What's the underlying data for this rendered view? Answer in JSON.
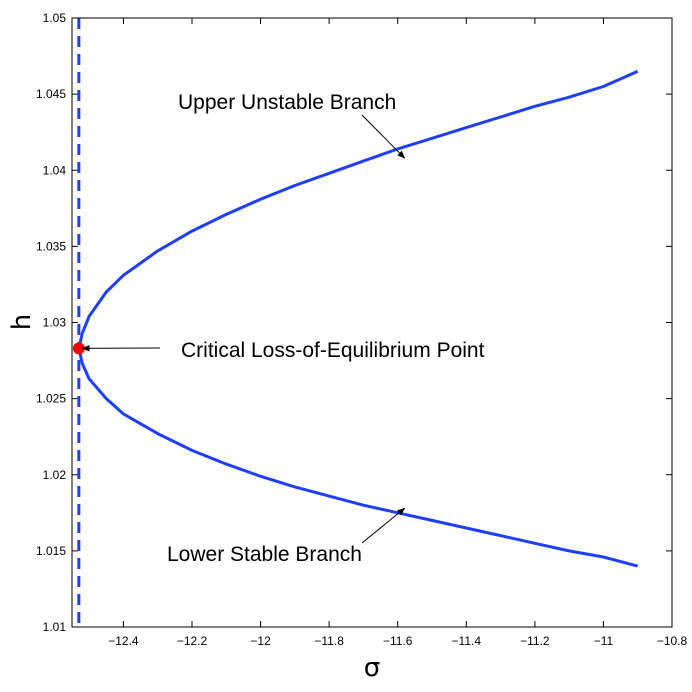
{
  "chart_data": {
    "type": "line",
    "title": "",
    "xlabel": "σ",
    "ylabel": "h",
    "xlim": [
      -12.55,
      -10.8
    ],
    "ylim": [
      1.01,
      1.05
    ],
    "xticks": [
      -12.4,
      -12.2,
      -12,
      -11.8,
      -11.6,
      -11.4,
      -11.2,
      -11,
      -10.8
    ],
    "xtick_labels": [
      "−12.4",
      "−12.2",
      "−12",
      "−11.8",
      "−11.6",
      "−11.4",
      "−11.2",
      "−11",
      "−10.8"
    ],
    "yticks": [
      1.01,
      1.015,
      1.02,
      1.025,
      1.03,
      1.035,
      1.04,
      1.045,
      1.05
    ],
    "ytick_labels": [
      "1.01",
      "1.015",
      "1.02",
      "1.025",
      "1.03",
      "1.035",
      "1.04",
      "1.045",
      "1.05"
    ],
    "grid": false,
    "critical_point": {
      "x": -12.53,
      "y": 1.0283,
      "color": "#ff0000"
    },
    "vertical_line": {
      "x": -12.53,
      "style": "dashed",
      "color": "#1f3fff"
    },
    "series": [
      {
        "label": "Upper Unstable Branch",
        "color": "#1f3fff",
        "x": [
          -12.53,
          -12.52,
          -12.5,
          -12.45,
          -12.4,
          -12.3,
          -12.2,
          -12.1,
          -12.0,
          -11.9,
          -11.8,
          -11.7,
          -11.6,
          -11.5,
          -11.4,
          -11.3,
          -11.2,
          -11.1,
          -11.0,
          -10.9
        ],
        "y": [
          1.0283,
          1.0293,
          1.0304,
          1.032,
          1.0331,
          1.0347,
          1.036,
          1.0371,
          1.0381,
          1.039,
          1.0398,
          1.0406,
          1.0414,
          1.0421,
          1.0428,
          1.0435,
          1.0442,
          1.0448,
          1.0455,
          1.0465
        ]
      },
      {
        "label": "Lower Stable Branch",
        "color": "#1f3fff",
        "x": [
          -12.53,
          -12.52,
          -12.5,
          -12.45,
          -12.4,
          -12.3,
          -12.2,
          -12.1,
          -12.0,
          -11.9,
          -11.8,
          -11.7,
          -11.6,
          -11.5,
          -11.4,
          -11.3,
          -11.2,
          -11.1,
          -11.0,
          -10.9
        ],
        "y": [
          1.0283,
          1.0273,
          1.0263,
          1.025,
          1.024,
          1.0227,
          1.0216,
          1.0207,
          1.0199,
          1.0192,
          1.0186,
          1.018,
          1.0175,
          1.017,
          1.0165,
          1.016,
          1.0155,
          1.015,
          1.0146,
          1.014
        ]
      }
    ],
    "annotations": [
      {
        "text": "Upper Unstable Branch",
        "target": {
          "x": -11.58,
          "y": 1.0408
        }
      },
      {
        "text": "Critical Loss-of-Equilibrium Point",
        "target": {
          "x": -12.52,
          "y": 1.0283
        }
      },
      {
        "text": "Lower Stable Branch",
        "target": {
          "x": -11.58,
          "y": 1.0178
        }
      }
    ]
  }
}
